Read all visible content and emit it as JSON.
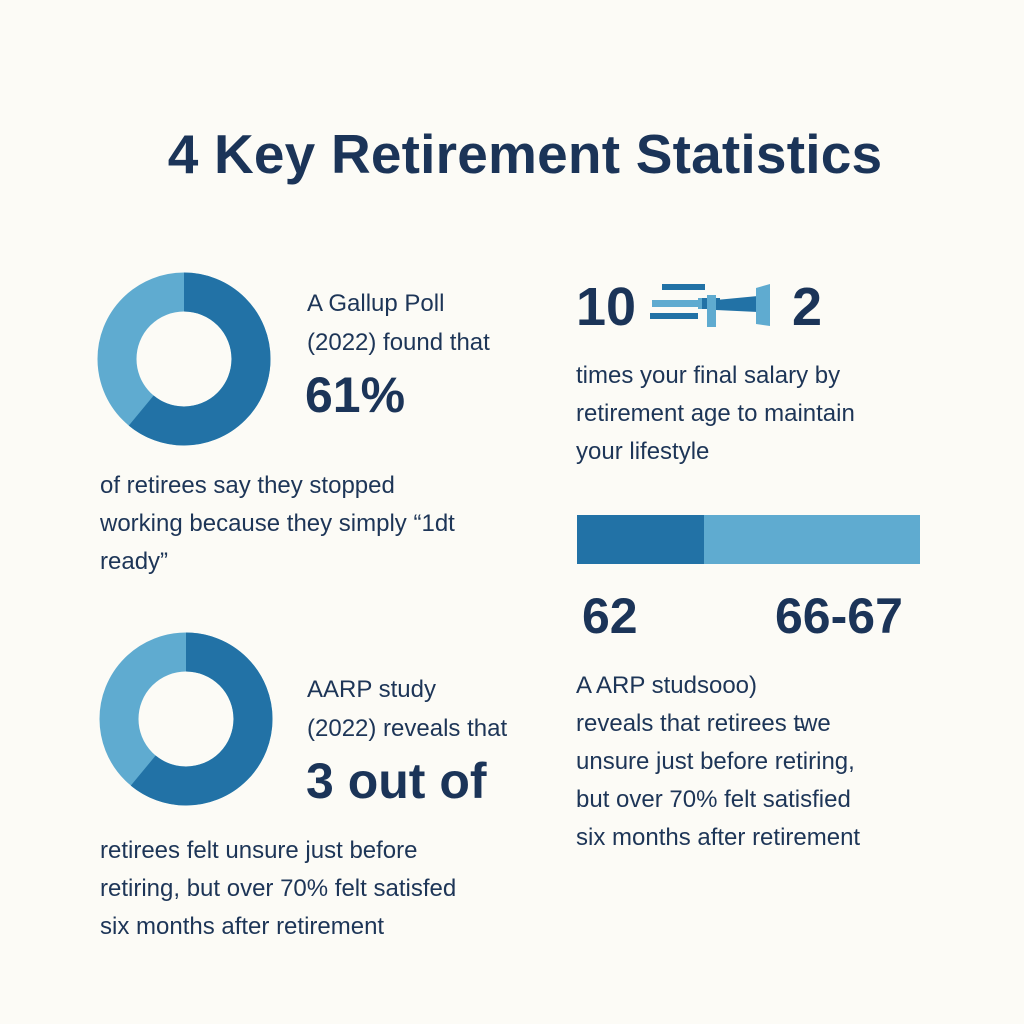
{
  "title": "4 Key Retirement Statistics",
  "colors": {
    "background": "#fcfbf6",
    "text": "#1c3254",
    "dark_blue": "#2272a6",
    "light_blue": "#5fabd0"
  },
  "stat1": {
    "intro_line1": "A Gallup Poll",
    "intro_line2": "(2022) found that",
    "value": "61%",
    "donut_fraction": 0.61,
    "body_line1": "of retirees say they stopped",
    "body_line2": "working because they simply “1dt",
    "body_line3": "ready”"
  },
  "stat2": {
    "left_number": "10",
    "right_number": "2",
    "icon": "arrow-range-icon",
    "body_line1": "times your final salary by",
    "body_line2": "retirement age to maintain",
    "body_line3": "your lifestyle"
  },
  "stat3": {
    "intro_line1": "AARP study",
    "intro_line2": "(2022) reveals that",
    "value": "3 out of",
    "donut_fraction": 0.61,
    "body_line1": "retirees felt unsure just before",
    "body_line2": "retiring, but over 70% felt satisfed",
    "body_line3": "six months after retirement"
  },
  "stat4": {
    "bar_fraction": 0.37,
    "left_label": "62",
    "right_label": "66-67",
    "body_line1": "A ARP studsooo)",
    "body_line2": "reveals that retirees t̵we",
    "body_line3": "unsure just before retiring,",
    "body_line4": "but over 70% felt satisfied",
    "body_line5": "six months after retirement"
  }
}
